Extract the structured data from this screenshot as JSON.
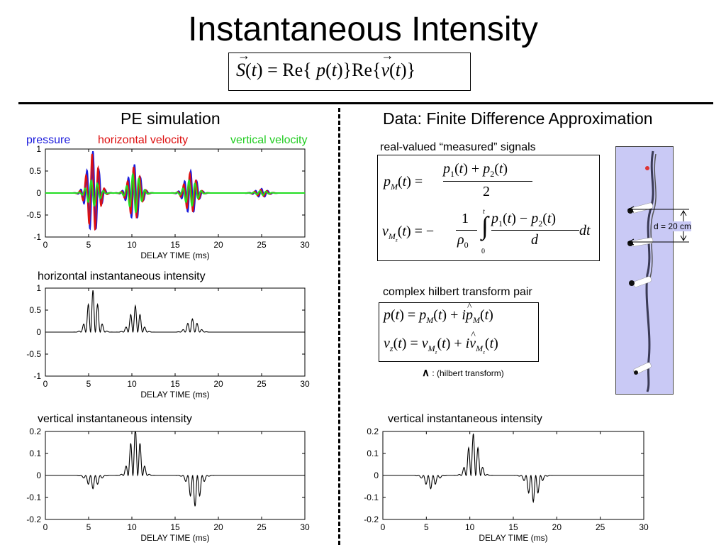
{
  "slide": {
    "title": "Instantaneous Intensity",
    "main_formula": "S(t) = Re{p(t)}Re{v(t)}"
  },
  "left_panel": {
    "heading": "PE simulation",
    "legend": [
      {
        "label": "pressure",
        "color": "#1a1adc"
      },
      {
        "label": "horizontal velocity",
        "color": "#dd1111"
      },
      {
        "label": "vertical velocity",
        "color": "#22dd22"
      }
    ],
    "plot2_caption": "horizontal instantaneous intensity",
    "plot3_caption": "vertical instantaneous intensity"
  },
  "right_panel": {
    "heading": "Data: Finite Difference Approximation",
    "signals_caption": "real-valued “measured” signals",
    "eq1": "p_M(t) = (p1(t) + p2(t)) / 2",
    "eq2": "v_Mz(t) = -(1/rho0) integral_0^t (p1(t) - p2(t))/d dt",
    "hilbert_caption": "complex hilbert transform pair",
    "eq3": "p(t) = p_M(t) + i p^_M(t)",
    "eq4": "v_z(t) = v_Mz(t) + i v^_Mz(t)",
    "hat_note": "∧ : (hilbert transform)",
    "hat_symbol": "∧",
    "hat_text": ": (hilbert transform)",
    "plot4_caption": "vertical instantaneous intensity",
    "photo_label": "d = 20 cm"
  },
  "chart_data": [
    {
      "type": "line",
      "xlabel": "DELAY TIME (ms)",
      "xlim": [
        0,
        30
      ],
      "ylim": [
        -1,
        1
      ],
      "xticks": [
        "0",
        "5",
        "10",
        "15",
        "20",
        "25",
        "30"
      ],
      "yticks": [
        "1",
        "0.5",
        "0",
        "-0.5",
        "-1"
      ],
      "series": [
        {
          "name": "pressure",
          "color": "#1a1adc",
          "packets": [
            [
              5.5,
              0.95
            ],
            [
              10.3,
              0.65
            ],
            [
              16.8,
              0.5
            ],
            [
              25,
              0.1
            ]
          ]
        },
        {
          "name": "horizontal velocity",
          "color": "#dd1111",
          "packets": [
            [
              5.5,
              0.9
            ],
            [
              10.3,
              0.6
            ],
            [
              16.8,
              0.45
            ],
            [
              25,
              0.08
            ]
          ]
        },
        {
          "name": "vertical velocity",
          "color": "#22dd22",
          "packets": [
            [
              5.5,
              0.3
            ],
            [
              10.3,
              0.45
            ],
            [
              16.8,
              0.3
            ],
            [
              25,
              0.05
            ]
          ]
        }
      ]
    },
    {
      "type": "line",
      "xlabel": "DELAY TIME (ms)",
      "xlim": [
        0,
        30
      ],
      "ylim": [
        -1,
        1
      ],
      "xticks": [
        "0",
        "5",
        "10",
        "15",
        "20",
        "25",
        "30"
      ],
      "yticks": [
        "1",
        "0.5",
        "0",
        "-0.5",
        "-1"
      ],
      "series": [
        {
          "color": "#000000",
          "packets": [
            [
              5.5,
              0.95
            ],
            [
              10.4,
              0.6
            ],
            [
              17,
              0.3
            ]
          ]
        }
      ]
    },
    {
      "type": "line",
      "xlabel": "DELAY TIME (ms)",
      "xlim": [
        0,
        30
      ],
      "ylim": [
        -0.2,
        0.2
      ],
      "xticks": [
        "0",
        "5",
        "10",
        "15",
        "20",
        "25",
        "30"
      ],
      "yticks": [
        "0.2",
        "0.1",
        "0",
        "-0.1",
        "-0.2"
      ],
      "series": [
        {
          "color": "#000000",
          "packets": [
            [
              5.5,
              -0.06
            ],
            [
              10.4,
              0.22
            ],
            [
              17.3,
              -0.14
            ]
          ]
        }
      ]
    },
    {
      "type": "line",
      "xlabel": "DELAY TIME (ms)",
      "xlim": [
        0,
        30
      ],
      "ylim": [
        -0.2,
        0.2
      ],
      "xticks": [
        "0",
        "5",
        "10",
        "15",
        "20",
        "25",
        "30"
      ],
      "yticks": [
        "0.2",
        "0.1",
        "0",
        "-0.1",
        "-0.2"
      ],
      "series": [
        {
          "color": "#000000",
          "packets": [
            [
              5.5,
              -0.06
            ],
            [
              10.4,
              0.19
            ],
            [
              17.3,
              -0.12
            ]
          ]
        }
      ]
    }
  ]
}
